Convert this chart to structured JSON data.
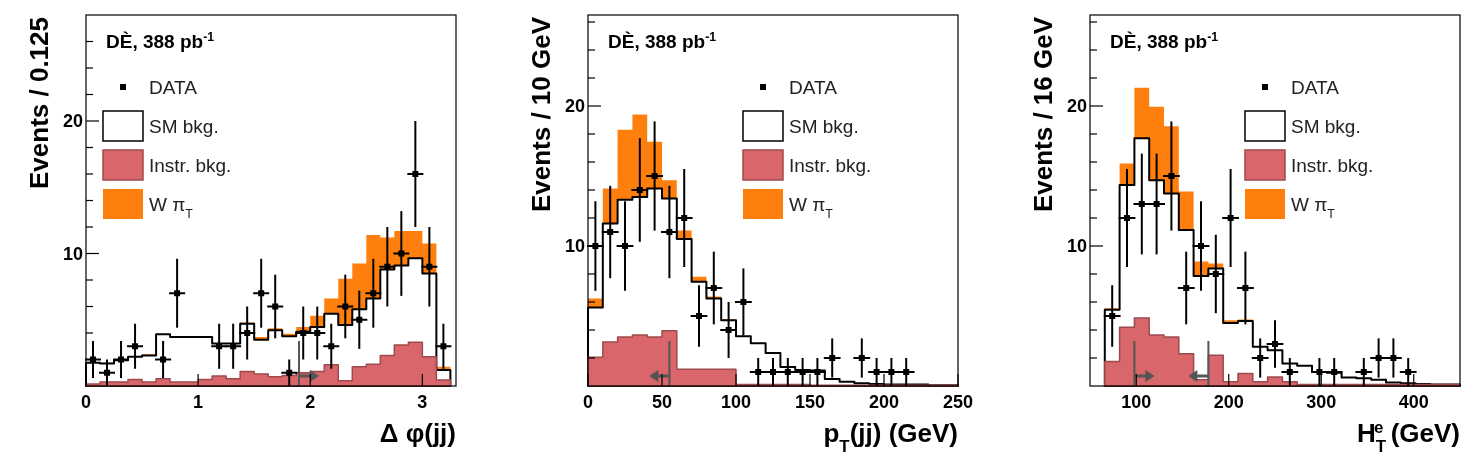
{
  "chart_data": [
    {
      "type": "histogram",
      "xlabel": "Δ φ(jj)",
      "ylabel": "Events / 0.125",
      "annotations": [
        "DÈ, 388 pb$^{-1}$"
      ],
      "legend": "top left",
      "marker": "square",
      "bins": [
        0,
        0.125,
        0.25,
        0.375,
        0.5,
        0.625,
        0.75,
        0.875,
        1,
        1.125,
        1.25,
        1.375,
        1.5,
        1.625,
        1.75,
        1.875,
        2,
        2.125,
        2.25,
        2.375,
        2.5,
        2.625,
        2.75,
        2.875,
        3,
        3.125,
        3.25
      ],
      "xlim": [
        0,
        3.3
      ],
      "xticks": [
        0,
        1,
        2,
        3
      ],
      "ylim": [
        0,
        28
      ],
      "yticks": [
        {
          "value": 2,
          "label": null
        },
        {
          "value": 4,
          "label": null
        },
        {
          "value": 6,
          "label": null
        },
        {
          "value": 8,
          "label": null
        },
        {
          "value": 10,
          "label": "10"
        },
        {
          "value": 12,
          "label": null
        },
        {
          "value": 14,
          "label": null
        },
        {
          "value": 16,
          "label": null
        },
        {
          "value": 18,
          "label": null
        },
        {
          "value": 20,
          "label": "20"
        },
        {
          "value": 22,
          "label": null
        },
        {
          "value": 24,
          "label": null
        },
        {
          "value": 26,
          "label": null
        }
      ],
      "ref_lines": [
        {
          "axis": "x",
          "value": 1.9,
          "color": "#555555"
        }
      ],
      "series": [
        {
          "name": "DATA",
          "type": "scatter",
          "color": "#000000",
          "x": [
            0.0625,
            0.1875,
            0.3125,
            0.4375,
            0.5625,
            0.6875,
            0.8125,
            0.9375,
            1.0625,
            1.1875,
            1.3125,
            1.4375,
            1.5625,
            1.6875,
            1.8125,
            1.9375,
            2.0625,
            2.1875,
            2.3125,
            2.4375,
            2.5625,
            2.6875,
            2.8125,
            2.9375,
            3.0625,
            3.1875
          ],
          "values": [
            2,
            1,
            2,
            3,
            null,
            2,
            7,
            null,
            null,
            3,
            3,
            4,
            7,
            6,
            1,
            4,
            4,
            3,
            6,
            5,
            7,
            9,
            10,
            16,
            9,
            3
          ],
          "errors": [
            1.4,
            1,
            1.4,
            1.7,
            null,
            1.4,
            2.6,
            null,
            null,
            1.7,
            1.7,
            2,
            2.6,
            2.4,
            1,
            2,
            2,
            1.7,
            2.4,
            2.2,
            2.6,
            3,
            3.2,
            4,
            3,
            1.7
          ],
          "xerrors": [
            0.0625,
            0.0625,
            0.0625,
            0.0625,
            null,
            0.0625,
            0.0625,
            null,
            null,
            0.0625,
            0.0625,
            0.0625,
            0.0625,
            0.0625,
            0.0625,
            0.0625,
            0.0625,
            0.0625,
            0.0625,
            0.0625,
            0.0625,
            0.0625,
            0.0625,
            0.0625,
            0.0625,
            0.0625
          ]
        },
        {
          "name": "SM bkg.",
          "color": "#ffffff",
          "values": [
            1.75,
            1.7,
            1.95,
            2.2,
            2.3,
            3.9,
            3.7,
            3.7,
            3.7,
            3.2,
            3.2,
            4.7,
            3.5,
            4.2,
            3.75,
            4.1,
            4.45,
            5.45,
            4.6,
            5.8,
            6.6,
            8.8,
            9.1,
            9.65,
            8.5,
            1.2
          ]
        },
        {
          "name": "Instr. bkg.",
          "color": "#d9666a",
          "values": [
            0.15,
            0.3,
            0.3,
            0.5,
            0.3,
            0.55,
            0.3,
            0.3,
            0.5,
            0.75,
            0.55,
            1.1,
            0.9,
            0.7,
            0.8,
            1.0,
            1.1,
            1.6,
            0.4,
            1.45,
            1.65,
            2.3,
            3.1,
            3.3,
            2.2,
            0.45
          ]
        },
        {
          "name": "W π$_{T}$",
          "color": "#ff7f0e",
          "values": [
            1.75,
            1.75,
            1.95,
            2.2,
            2.4,
            3.9,
            3.75,
            3.75,
            3.75,
            3.2,
            3.2,
            4.8,
            3.7,
            4.35,
            3.95,
            4.45,
            5.3,
            6.6,
            8.1,
            9.25,
            11.4,
            11.2,
            11.7,
            11.7,
            10.75,
            1.45
          ]
        }
      ]
    },
    {
      "type": "histogram",
      "xlabel": "p$_{T}$(jj) (GeV)",
      "ylabel": "Events / 10 GeV",
      "annotations": [
        "DÈ, 388 pb$^{-1}$"
      ],
      "legend": "top right",
      "marker": "square",
      "bins": [
        0,
        10,
        20,
        30,
        40,
        50,
        60,
        70,
        80,
        90,
        100,
        110,
        120,
        130,
        140,
        150,
        160,
        170,
        180,
        190,
        200,
        210,
        220,
        230,
        240,
        250
      ],
      "xlim": [
        0,
        250
      ],
      "xticks": [
        0,
        50,
        100,
        150,
        200,
        250
      ],
      "ylim": [
        0,
        26.5
      ],
      "yticks": [
        {
          "value": 2,
          "label": null
        },
        {
          "value": 4,
          "label": null
        },
        {
          "value": 6,
          "label": null
        },
        {
          "value": 8,
          "label": null
        },
        {
          "value": 10,
          "label": "10"
        },
        {
          "value": 12,
          "label": null
        },
        {
          "value": 14,
          "label": null
        },
        {
          "value": 16,
          "label": null
        },
        {
          "value": 18,
          "label": null
        },
        {
          "value": 20,
          "label": "20"
        },
        {
          "value": 22,
          "label": null
        },
        {
          "value": 24,
          "label": null
        },
        {
          "value": 26,
          "label": null
        }
      ],
      "ref_lines": [
        {
          "axis": "x",
          "value": 55,
          "color": "#555555"
        }
      ],
      "series": [
        {
          "name": "DATA",
          "type": "scatter",
          "color": "#000000",
          "x": [
            5,
            15,
            25,
            35,
            45,
            55,
            65,
            75,
            85,
            95,
            105,
            115,
            125,
            135,
            145,
            155,
            165,
            175,
            185,
            195,
            205,
            215
          ],
          "values": [
            10,
            11,
            10,
            14,
            15,
            11,
            12,
            5,
            7,
            4,
            6,
            1,
            1,
            1,
            1,
            1,
            2,
            null,
            2,
            1,
            1,
            1
          ],
          "errors": [
            3.2,
            3.3,
            3.2,
            3.7,
            3.9,
            3.3,
            3.5,
            2.2,
            2.6,
            2,
            2.4,
            1,
            1,
            1,
            1,
            1,
            1.4,
            null,
            1.4,
            1,
            1,
            1
          ],
          "xerrors": [
            5,
            5,
            5,
            5,
            5,
            5,
            5,
            5,
            5,
            5,
            5,
            5,
            5,
            5,
            5,
            5,
            5,
            null,
            5,
            5,
            5,
            5
          ]
        },
        {
          "name": "SM bkg.",
          "color": "#ffffff",
          "values": [
            5.6,
            11.6,
            13.3,
            13.5,
            14.1,
            13.4,
            10.5,
            7.45,
            6.25,
            4.7,
            3.55,
            3.05,
            2.35,
            1.35,
            1.15,
            1.1,
            0.5,
            0.3,
            0.2,
            0.15,
            0.1,
            0.1,
            0.1,
            0.05,
            0.05
          ]
        },
        {
          "name": "Instr. bkg.",
          "color": "#d9666a",
          "values": [
            2.05,
            3.15,
            3.5,
            3.65,
            3.5,
            3.95,
            1.2,
            1.2,
            1.2,
            1.2,
            0.1,
            0.1,
            0.1,
            0.1,
            0.1,
            0.05,
            0.05,
            0.05,
            0.05,
            0.05,
            0.05,
            0.05,
            0.05,
            0.05,
            0.05
          ]
        },
        {
          "name": "W π$_{T}$",
          "color": "#ff7f0e",
          "values": [
            6.25,
            14.1,
            18.3,
            19.4,
            17.45,
            14.7,
            11.1,
            7.8,
            6.4,
            4.75,
            3.55,
            3.05,
            2.35,
            1.35,
            1.15,
            1.1,
            0.5,
            0.3,
            0.2,
            0.15,
            0.1,
            0.1,
            0.1,
            0.05,
            0.05
          ]
        }
      ]
    },
    {
      "type": "histogram",
      "xlabel": "H$_{T}$$^{e}$ (GeV)",
      "ylabel": "Events / 16 GeV",
      "annotations": [
        "DÈ, 388 pb$^{-1}$"
      ],
      "legend": "top right",
      "marker": "square",
      "bins": [
        66,
        82,
        98,
        114,
        130,
        146,
        162,
        178,
        194,
        210,
        226,
        242,
        258,
        274,
        290,
        306,
        322,
        338,
        354,
        370,
        386,
        402,
        418,
        434,
        450
      ],
      "xlim": [
        50,
        450
      ],
      "xticks": [
        100,
        200,
        300,
        400
      ],
      "ylim": [
        0,
        26.5
      ],
      "yticks": [
        {
          "value": 2,
          "label": null
        },
        {
          "value": 4,
          "label": null
        },
        {
          "value": 6,
          "label": null
        },
        {
          "value": 8,
          "label": null
        },
        {
          "value": 10,
          "label": "10"
        },
        {
          "value": 12,
          "label": null
        },
        {
          "value": 14,
          "label": null
        },
        {
          "value": 16,
          "label": null
        },
        {
          "value": 18,
          "label": null
        },
        {
          "value": 20,
          "label": "20"
        },
        {
          "value": 22,
          "label": null
        },
        {
          "value": 24,
          "label": null
        },
        {
          "value": 26,
          "label": null
        }
      ],
      "ref_lines": [
        {
          "axis": "x",
          "value": 98,
          "color": "#555555"
        },
        {
          "axis": "x",
          "value": 178,
          "color": "#555555"
        }
      ],
      "series": [
        {
          "name": "DATA",
          "type": "scatter",
          "color": "#000000",
          "x": [
            74,
            90,
            106,
            122,
            138,
            154,
            170,
            186,
            202,
            218,
            234,
            250,
            266,
            282,
            298,
            314,
            330,
            346,
            362,
            378,
            394
          ],
          "values": [
            5,
            12,
            13,
            13,
            15,
            7,
            10,
            8,
            12,
            7,
            2,
            3,
            1,
            null,
            1,
            1,
            null,
            1,
            2,
            2,
            1
          ],
          "errors": [
            2.2,
            3.5,
            3.6,
            3.6,
            3.9,
            2.6,
            3.2,
            2.8,
            3.5,
            2.6,
            1.4,
            1.7,
            1,
            null,
            1,
            1,
            null,
            1,
            1.4,
            1.4,
            1
          ],
          "xerrors": [
            8,
            8,
            8,
            8,
            8,
            8,
            8,
            8,
            8,
            8,
            8,
            8,
            8,
            null,
            8,
            8,
            null,
            8,
            8,
            8,
            8
          ]
        },
        {
          "name": "SM bkg.",
          "color": "#ffffff",
          "values": [
            5.45,
            14.35,
            17.7,
            14.7,
            13.75,
            11.15,
            7.85,
            8.4,
            4.5,
            4.65,
            2.8,
            2.55,
            1.6,
            1.45,
            1.0,
            0.95,
            0.6,
            0.55,
            0.45,
            0.25,
            0.2,
            0.15,
            0.1,
            0.1
          ]
        },
        {
          "name": "Instr. bkg.",
          "color": "#d9666a",
          "values": [
            1.75,
            4.2,
            4.85,
            3.65,
            3.5,
            2.3,
            0.45,
            2.2,
            0.3,
            0.9,
            0.3,
            0.65,
            0.3,
            0.1,
            0.1,
            0.1,
            0.1,
            0.1,
            0.1,
            0.1,
            0.1,
            0.1,
            0.1,
            0.1
          ]
        },
        {
          "name": "W π$_{T}$",
          "color": "#ff7f0e",
          "values": [
            5.55,
            15.9,
            21.3,
            19.95,
            18.55,
            13.9,
            8.9,
            8.75,
            4.7,
            4.75,
            2.8,
            2.55,
            1.6,
            1.45,
            1.0,
            0.95,
            0.6,
            0.55,
            0.45,
            0.25,
            0.2,
            0.15,
            0.1,
            0.1
          ]
        }
      ]
    }
  ]
}
